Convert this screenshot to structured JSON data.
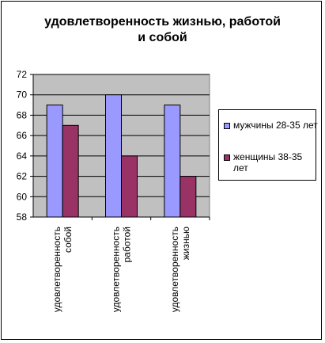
{
  "chart_data": {
    "type": "bar",
    "title": "удовлетворенность жизнью, работой\nи собой",
    "categories": [
      "удовлетворенность\nсобой",
      "удовлетворенность\nработой",
      "удовлетворенность\nжизнью"
    ],
    "series": [
      {
        "name": "мужчины 28-35 лет",
        "values": [
          69,
          70,
          69
        ],
        "color": "#9999FF"
      },
      {
        "name": "женщины 38-35 лет",
        "values": [
          67,
          64,
          62
        ],
        "color": "#993366"
      }
    ],
    "ylim": [
      58,
      72
    ],
    "yticks": [
      58,
      60,
      62,
      64,
      66,
      68,
      70,
      72
    ],
    "grid": true,
    "plot_background": "#C0C0C0",
    "legend_position": "right"
  }
}
